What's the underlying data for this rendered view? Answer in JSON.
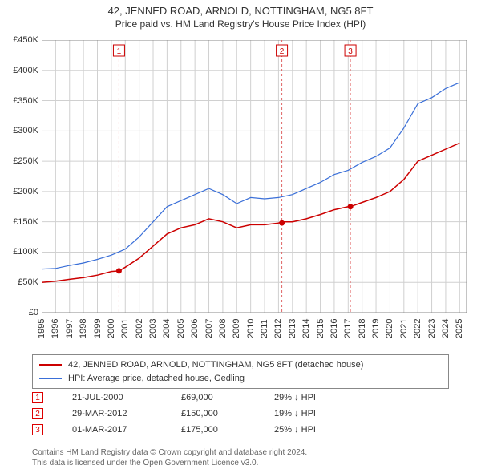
{
  "title": "42, JENNED ROAD, ARNOLD, NOTTINGHAM, NG5 8FT",
  "subtitle": "Price paid vs. HM Land Registry's House Price Index (HPI)",
  "chart": {
    "type": "line",
    "background_color": "#ffffff",
    "grid_color": "#d0d0d0",
    "x_years": [
      1995,
      1996,
      1997,
      1998,
      1999,
      2000,
      2001,
      2002,
      2003,
      2004,
      2005,
      2006,
      2007,
      2008,
      2009,
      2010,
      2011,
      2012,
      2013,
      2014,
      2015,
      2016,
      2017,
      2018,
      2019,
      2020,
      2021,
      2022,
      2023,
      2024,
      2025
    ],
    "y_ticks": [
      0,
      50000,
      100000,
      150000,
      200000,
      250000,
      300000,
      350000,
      400000,
      450000
    ],
    "y_tick_labels": [
      "£0",
      "£50K",
      "£100K",
      "£150K",
      "£200K",
      "£250K",
      "£300K",
      "£350K",
      "£400K",
      "£450K"
    ],
    "xlim": [
      1995,
      2025.5
    ],
    "ylim": [
      0,
      450000
    ],
    "series": [
      {
        "name": "42, JENNED ROAD, ARNOLD, NOTTINGHAM, NG5 8FT (detached house)",
        "color": "#cc0000",
        "line_width": 1.5,
        "data": [
          [
            1995,
            50000
          ],
          [
            1996,
            52000
          ],
          [
            1997,
            55000
          ],
          [
            1998,
            58000
          ],
          [
            1999,
            62000
          ],
          [
            2000,
            68000
          ],
          [
            2000.55,
            69000
          ],
          [
            2001,
            75000
          ],
          [
            2002,
            90000
          ],
          [
            2003,
            110000
          ],
          [
            2004,
            130000
          ],
          [
            2005,
            140000
          ],
          [
            2006,
            145000
          ],
          [
            2007,
            155000
          ],
          [
            2008,
            150000
          ],
          [
            2009,
            140000
          ],
          [
            2010,
            145000
          ],
          [
            2011,
            145000
          ],
          [
            2012,
            148000
          ],
          [
            2012.24,
            150000
          ],
          [
            2013,
            150000
          ],
          [
            2014,
            155000
          ],
          [
            2015,
            162000
          ],
          [
            2016,
            170000
          ],
          [
            2017,
            175000
          ],
          [
            2017.16,
            175000
          ],
          [
            2018,
            182000
          ],
          [
            2019,
            190000
          ],
          [
            2020,
            200000
          ],
          [
            2021,
            220000
          ],
          [
            2022,
            250000
          ],
          [
            2023,
            260000
          ],
          [
            2024,
            270000
          ],
          [
            2025,
            280000
          ]
        ]
      },
      {
        "name": "HPI: Average price, detached house, Gedling",
        "color": "#3a6fd8",
        "line_width": 1.2,
        "data": [
          [
            1995,
            72000
          ],
          [
            1996,
            73000
          ],
          [
            1997,
            78000
          ],
          [
            1998,
            82000
          ],
          [
            1999,
            88000
          ],
          [
            2000,
            95000
          ],
          [
            2001,
            105000
          ],
          [
            2002,
            125000
          ],
          [
            2003,
            150000
          ],
          [
            2004,
            175000
          ],
          [
            2005,
            185000
          ],
          [
            2006,
            195000
          ],
          [
            2007,
            205000
          ],
          [
            2008,
            195000
          ],
          [
            2009,
            180000
          ],
          [
            2010,
            190000
          ],
          [
            2011,
            188000
          ],
          [
            2012,
            190000
          ],
          [
            2013,
            195000
          ],
          [
            2014,
            205000
          ],
          [
            2015,
            215000
          ],
          [
            2016,
            228000
          ],
          [
            2017,
            235000
          ],
          [
            2018,
            248000
          ],
          [
            2019,
            258000
          ],
          [
            2020,
            272000
          ],
          [
            2021,
            305000
          ],
          [
            2022,
            345000
          ],
          [
            2023,
            355000
          ],
          [
            2024,
            370000
          ],
          [
            2025,
            380000
          ]
        ]
      }
    ],
    "markers": [
      {
        "n": "1",
        "x": 2000.55,
        "date": "21-JUL-2000",
        "price": "£69,000",
        "delta": "29% ↓ HPI"
      },
      {
        "n": "2",
        "x": 2012.24,
        "date": "29-MAR-2012",
        "price": "£150,000",
        "delta": "19% ↓ HPI"
      },
      {
        "n": "3",
        "x": 2017.16,
        "date": "01-MAR-2017",
        "price": "£175,000",
        "delta": "25% ↓ HPI"
      }
    ],
    "marker_line_color": "#e06666",
    "marker_box_border": "#cc0000",
    "label_fontsize": 11,
    "title_fontsize": 13
  },
  "legend": {
    "s1": "42, JENNED ROAD, ARNOLD, NOTTINGHAM, NG5 8FT (detached house)",
    "s2": "HPI: Average price, detached house, Gedling"
  },
  "footer": {
    "l1": "Contains HM Land Registry data © Crown copyright and database right 2024.",
    "l2": "This data is licensed under the Open Government Licence v3.0."
  }
}
